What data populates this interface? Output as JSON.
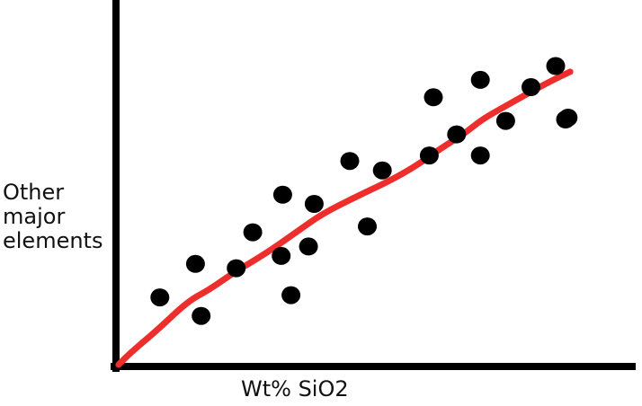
{
  "chart_data": {
    "type": "scatter",
    "title": "",
    "xlabel": "Wt% SiO2",
    "ylabel": "Other\nmajor\nelements",
    "xlim": [
      0,
      100
    ],
    "ylim": [
      0,
      100
    ],
    "grid": false,
    "legend": "none",
    "colors": {
      "axis": "#000000",
      "points": "#000000",
      "trend": "#ee2d2d"
    },
    "points": [
      {
        "x": 8.5,
        "y": 19.0
      },
      {
        "x": 15.4,
        "y": 28.2
      },
      {
        "x": 16.5,
        "y": 13.9
      },
      {
        "x": 23.3,
        "y": 27.0
      },
      {
        "x": 26.5,
        "y": 36.9
      },
      {
        "x": 32.0,
        "y": 30.4
      },
      {
        "x": 32.3,
        "y": 47.2
      },
      {
        "x": 33.9,
        "y": 19.6
      },
      {
        "x": 37.3,
        "y": 33.0
      },
      {
        "x": 38.4,
        "y": 44.7
      },
      {
        "x": 45.3,
        "y": 56.5
      },
      {
        "x": 48.7,
        "y": 38.5
      },
      {
        "x": 51.6,
        "y": 53.9
      },
      {
        "x": 60.7,
        "y": 58.0
      },
      {
        "x": 61.5,
        "y": 74.0
      },
      {
        "x": 66.0,
        "y": 63.8
      },
      {
        "x": 70.6,
        "y": 78.8
      },
      {
        "x": 70.6,
        "y": 58.0
      },
      {
        "x": 75.5,
        "y": 67.5
      },
      {
        "x": 80.4,
        "y": 76.8
      },
      {
        "x": 85.2,
        "y": 82.6
      },
      {
        "x": 87.1,
        "y": 67.9
      },
      {
        "x": 87.6,
        "y": 68.4
      }
    ],
    "trend_line": [
      {
        "x": 0.5,
        "y": 0.5
      },
      {
        "x": 3.0,
        "y": 4.0
      },
      {
        "x": 8.0,
        "y": 10.0
      },
      {
        "x": 14.0,
        "y": 18.0
      },
      {
        "x": 18.0,
        "y": 21.0
      },
      {
        "x": 23.0,
        "y": 26.0
      },
      {
        "x": 29.0,
        "y": 31.0
      },
      {
        "x": 35.0,
        "y": 37.0
      },
      {
        "x": 40.0,
        "y": 42.0
      },
      {
        "x": 47.0,
        "y": 47.0
      },
      {
        "x": 53.0,
        "y": 51.0
      },
      {
        "x": 58.0,
        "y": 55.0
      },
      {
        "x": 63.0,
        "y": 60.0
      },
      {
        "x": 67.5,
        "y": 64.0
      },
      {
        "x": 71.0,
        "y": 68.0
      },
      {
        "x": 76.0,
        "y": 72.0
      },
      {
        "x": 81.0,
        "y": 76.0
      },
      {
        "x": 85.0,
        "y": 79.0
      },
      {
        "x": 88.0,
        "y": 81.0
      }
    ]
  }
}
